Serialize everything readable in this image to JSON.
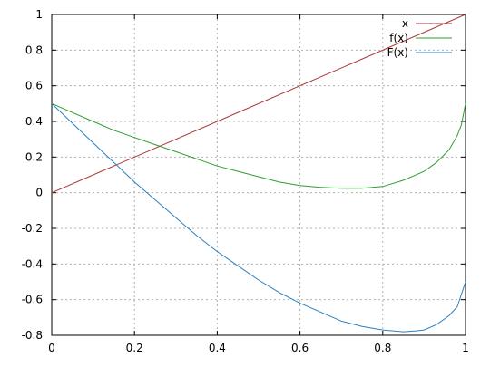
{
  "chart_data": {
    "type": "line",
    "title": "",
    "xlabel": "",
    "ylabel": "",
    "xlim": [
      0,
      1
    ],
    "ylim": [
      -0.8,
      1
    ],
    "grid": true,
    "legend_position": "top-right",
    "x_ticks": [
      {
        "value": 0,
        "label": "0"
      },
      {
        "value": 0.2,
        "label": "0.2"
      },
      {
        "value": 0.4,
        "label": "0.4"
      },
      {
        "value": 0.6,
        "label": "0.6"
      },
      {
        "value": 0.8,
        "label": "0.8"
      },
      {
        "value": 1,
        "label": "1"
      }
    ],
    "y_ticks": [
      {
        "value": 1,
        "label": "1"
      },
      {
        "value": 0.8,
        "label": "0.8"
      },
      {
        "value": 0.6,
        "label": "0.6"
      },
      {
        "value": 0.4,
        "label": "0.4"
      },
      {
        "value": 0.2,
        "label": "0.2"
      },
      {
        "value": 0,
        "label": "0"
      },
      {
        "value": -0.2,
        "label": "-0.2"
      },
      {
        "value": -0.4,
        "label": "-0.4"
      },
      {
        "value": -0.6,
        "label": "-0.6"
      },
      {
        "value": -0.8,
        "label": "-0.8"
      }
    ],
    "series": [
      {
        "name": "x",
        "color": "#aa3333",
        "x": [
          0,
          1
        ],
        "y": [
          0,
          1
        ]
      },
      {
        "name": "f(x)",
        "color": "#2e9e2e",
        "x": [
          0,
          0.05,
          0.1,
          0.15,
          0.2,
          0.25,
          0.3,
          0.35,
          0.4,
          0.45,
          0.5,
          0.55,
          0.6,
          0.65,
          0.7,
          0.75,
          0.8,
          0.85,
          0.9,
          0.93,
          0.96,
          0.98,
          0.99,
          1.0
        ],
        "y": [
          0.5,
          0.45,
          0.4,
          0.35,
          0.31,
          0.27,
          0.23,
          0.19,
          0.15,
          0.12,
          0.09,
          0.06,
          0.04,
          0.03,
          0.025,
          0.025,
          0.035,
          0.07,
          0.12,
          0.17,
          0.24,
          0.32,
          0.38,
          0.5
        ]
      },
      {
        "name": "F(x)",
        "color": "#2a7fc0",
        "x": [
          0,
          0.05,
          0.1,
          0.15,
          0.2,
          0.25,
          0.3,
          0.35,
          0.4,
          0.45,
          0.5,
          0.55,
          0.6,
          0.65,
          0.7,
          0.75,
          0.8,
          0.85,
          0.88,
          0.9,
          0.93,
          0.96,
          0.98,
          1.0
        ],
        "y": [
          0.5,
          0.39,
          0.28,
          0.17,
          0.06,
          -0.04,
          -0.14,
          -0.24,
          -0.33,
          -0.41,
          -0.49,
          -0.56,
          -0.62,
          -0.67,
          -0.72,
          -0.75,
          -0.77,
          -0.78,
          -0.775,
          -0.77,
          -0.74,
          -0.69,
          -0.64,
          -0.5
        ]
      }
    ]
  }
}
